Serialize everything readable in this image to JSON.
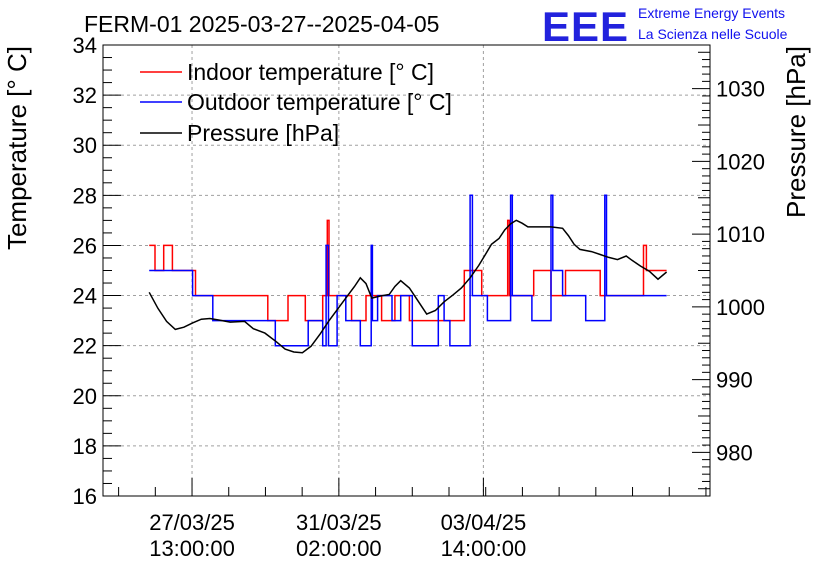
{
  "title": "FERM-01 2025-03-27--2025-04-05",
  "brand": {
    "logo": "EEE",
    "line1": "Extreme Energy Events",
    "line2": "La Scienza nelle Scuole",
    "color": "#2222dd"
  },
  "chart_data": {
    "type": "line",
    "title": "FERM-01 2025-03-27--2025-04-05",
    "ylabel": "Temperature [° C]",
    "y2label": "Pressure [hPa]",
    "xlabel": "",
    "ylim": [
      16,
      34
    ],
    "y2lim": [
      974,
      1036
    ],
    "xlim_days": [
      0,
      10.5
    ],
    "grid": true,
    "legend_position": "top-left",
    "y_ticks": [
      "16",
      "18",
      "20",
      "22",
      "24",
      "26",
      "28",
      "30",
      "32",
      "34"
    ],
    "y2_ticks": [
      "980",
      "990",
      "1000",
      "1010",
      "1020",
      "1030"
    ],
    "x_ticks": [
      {
        "day": 1.54,
        "line1": "27/03/25",
        "line2": "13:00:00"
      },
      {
        "day": 4.08,
        "line1": "31/03/25",
        "line2": "02:00:00"
      },
      {
        "day": 6.58,
        "line1": "03/04/25",
        "line2": "14:00:00"
      }
    ],
    "series": [
      {
        "name": "Indoor temperature [° C]",
        "color": "#ff0000",
        "axis": "left",
        "step": true,
        "points": [
          [
            0.8,
            26
          ],
          [
            0.9,
            25
          ],
          [
            1.05,
            26
          ],
          [
            1.2,
            25
          ],
          [
            1.45,
            25
          ],
          [
            1.6,
            24
          ],
          [
            2.85,
            23
          ],
          [
            3.2,
            24
          ],
          [
            3.5,
            23
          ],
          [
            3.8,
            24
          ],
          [
            3.88,
            27
          ],
          [
            3.91,
            24
          ],
          [
            4.3,
            23
          ],
          [
            4.55,
            24
          ],
          [
            4.82,
            23
          ],
          [
            5.05,
            24
          ],
          [
            5.3,
            23
          ],
          [
            6.25,
            25
          ],
          [
            6.55,
            24
          ],
          [
            7.0,
            27
          ],
          [
            7.03,
            24
          ],
          [
            7.45,
            25
          ],
          [
            7.75,
            24
          ],
          [
            8.0,
            25
          ],
          [
            8.6,
            24
          ],
          [
            9.35,
            26
          ],
          [
            9.4,
            25
          ],
          [
            9.75,
            25
          ]
        ]
      },
      {
        "name": "Outdoor temperature [° C]",
        "color": "#0000ff",
        "axis": "left",
        "step": true,
        "points": [
          [
            0.8,
            25
          ],
          [
            1.35,
            25
          ],
          [
            1.55,
            24
          ],
          [
            1.9,
            23
          ],
          [
            2.6,
            23
          ],
          [
            2.8,
            23
          ],
          [
            2.98,
            22
          ],
          [
            3.55,
            23
          ],
          [
            3.8,
            22
          ],
          [
            3.86,
            26
          ],
          [
            3.9,
            22
          ],
          [
            4.05,
            24
          ],
          [
            4.2,
            23
          ],
          [
            4.45,
            22
          ],
          [
            4.64,
            26
          ],
          [
            4.66,
            23
          ],
          [
            4.75,
            24
          ],
          [
            5.0,
            23
          ],
          [
            5.15,
            24
          ],
          [
            5.35,
            22
          ],
          [
            5.8,
            24
          ],
          [
            5.9,
            23
          ],
          [
            6.0,
            22
          ],
          [
            6.35,
            28
          ],
          [
            6.39,
            24
          ],
          [
            6.65,
            23
          ],
          [
            7.05,
            28
          ],
          [
            7.08,
            24
          ],
          [
            7.42,
            23
          ],
          [
            7.75,
            28
          ],
          [
            7.78,
            25
          ],
          [
            7.95,
            24
          ],
          [
            8.35,
            23
          ],
          [
            8.68,
            28
          ],
          [
            8.71,
            24
          ],
          [
            9.75,
            24
          ]
        ]
      },
      {
        "name": "Pressure [hPa]",
        "color": "#000000",
        "axis": "right",
        "step": false,
        "points": [
          [
            0.8,
            1002.0
          ],
          [
            0.95,
            999.8
          ],
          [
            1.1,
            998.0
          ],
          [
            1.25,
            996.9
          ],
          [
            1.4,
            997.2
          ],
          [
            1.55,
            997.8
          ],
          [
            1.7,
            998.3
          ],
          [
            1.85,
            998.4
          ],
          [
            2.0,
            998.2
          ],
          [
            2.2,
            997.9
          ],
          [
            2.45,
            998.0
          ],
          [
            2.6,
            997.0
          ],
          [
            2.8,
            996.4
          ],
          [
            3.0,
            995.2
          ],
          [
            3.15,
            994.2
          ],
          [
            3.3,
            993.8
          ],
          [
            3.45,
            993.7
          ],
          [
            3.6,
            994.6
          ],
          [
            3.75,
            996.2
          ],
          [
            3.9,
            998.0
          ],
          [
            4.05,
            999.6
          ],
          [
            4.2,
            1001.2
          ],
          [
            4.35,
            1002.8
          ],
          [
            4.45,
            1004.0
          ],
          [
            4.55,
            1003.2
          ],
          [
            4.65,
            1001.2
          ],
          [
            4.8,
            1001.5
          ],
          [
            4.95,
            1001.7
          ],
          [
            5.05,
            1002.8
          ],
          [
            5.15,
            1003.6
          ],
          [
            5.3,
            1002.6
          ],
          [
            5.45,
            1000.8
          ],
          [
            5.6,
            999.0
          ],
          [
            5.75,
            999.5
          ],
          [
            5.9,
            1000.7
          ],
          [
            6.05,
            1001.6
          ],
          [
            6.2,
            1002.6
          ],
          [
            6.35,
            1004.0
          ],
          [
            6.5,
            1005.7
          ],
          [
            6.6,
            1007.0
          ],
          [
            6.72,
            1008.6
          ],
          [
            6.85,
            1009.4
          ],
          [
            6.95,
            1010.6
          ],
          [
            7.05,
            1011.4
          ],
          [
            7.15,
            1011.9
          ],
          [
            7.25,
            1011.5
          ],
          [
            7.35,
            1011.0
          ],
          [
            7.55,
            1011.0
          ],
          [
            7.75,
            1011.0
          ],
          [
            7.95,
            1010.8
          ],
          [
            8.05,
            1009.8
          ],
          [
            8.15,
            1008.6
          ],
          [
            8.25,
            1007.9
          ],
          [
            8.45,
            1007.6
          ],
          [
            8.6,
            1007.2
          ],
          [
            8.75,
            1006.8
          ],
          [
            8.9,
            1006.5
          ],
          [
            9.05,
            1007.0
          ],
          [
            9.15,
            1006.4
          ],
          [
            9.3,
            1005.6
          ],
          [
            9.45,
            1004.9
          ],
          [
            9.6,
            1003.8
          ],
          [
            9.75,
            1004.8
          ]
        ]
      }
    ]
  }
}
